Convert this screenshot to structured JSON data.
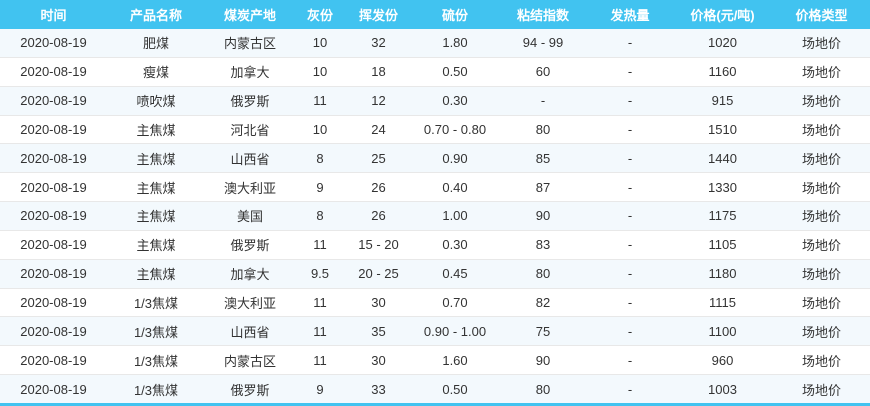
{
  "table": {
    "date_shown": "2020-08-19",
    "columns": [
      "时间",
      "产品名称",
      "煤炭产地",
      "灰份",
      "挥发份",
      "硫份",
      "粘结指数",
      "发热量",
      "价格(元/吨)",
      "价格类型"
    ],
    "rows": [
      [
        "2020-08-19",
        "肥煤",
        "内蒙古区",
        "10",
        "32",
        "1.80",
        "94 - 99",
        "-",
        "1020",
        "场地价"
      ],
      [
        "2020-08-19",
        "瘦煤",
        "加拿大",
        "10",
        "18",
        "0.50",
        "60",
        "-",
        "1160",
        "场地价"
      ],
      [
        "2020-08-19",
        "喷吹煤",
        "俄罗斯",
        "11",
        "12",
        "0.30",
        "-",
        "-",
        "915",
        "场地价"
      ],
      [
        "2020-08-19",
        "主焦煤",
        "河北省",
        "10",
        "24",
        "0.70 - 0.80",
        "80",
        "-",
        "1510",
        "场地价"
      ],
      [
        "2020-08-19",
        "主焦煤",
        "山西省",
        "8",
        "25",
        "0.90",
        "85",
        "-",
        "1440",
        "场地价"
      ],
      [
        "2020-08-19",
        "主焦煤",
        "澳大利亚",
        "9",
        "26",
        "0.40",
        "87",
        "-",
        "1330",
        "场地价"
      ],
      [
        "2020-08-19",
        "主焦煤",
        "美国",
        "8",
        "26",
        "1.00",
        "90",
        "-",
        "1175",
        "场地价"
      ],
      [
        "2020-08-19",
        "主焦煤",
        "俄罗斯",
        "11",
        "15 - 20",
        "0.30",
        "83",
        "-",
        "1105",
        "场地价"
      ],
      [
        "2020-08-19",
        "主焦煤",
        "加拿大",
        "9.5",
        "20 - 25",
        "0.45",
        "80",
        "-",
        "1180",
        "场地价"
      ],
      [
        "2020-08-19",
        "1/3焦煤",
        "澳大利亚",
        "11",
        "30",
        "0.70",
        "82",
        "-",
        "1115",
        "场地价"
      ],
      [
        "2020-08-19",
        "1/3焦煤",
        "山西省",
        "11",
        "35",
        "0.90 - 1.00",
        "75",
        "-",
        "1100",
        "场地价"
      ],
      [
        "2020-08-19",
        "1/3焦煤",
        "内蒙古区",
        "11",
        "30",
        "1.60",
        "90",
        "-",
        "960",
        "场地价"
      ],
      [
        "2020-08-19",
        "1/3焦煤",
        "俄罗斯",
        "9",
        "33",
        "0.50",
        "80",
        "-",
        "1003",
        "场地价"
      ]
    ],
    "colors": {
      "header_bg": "#41c3f0",
      "header_text": "#ffffff",
      "stripe_bg": "#f3f9fd",
      "row_bg": "#ffffff",
      "body_text": "#333333",
      "row_border": "#e8e8e8",
      "bottom_border": "#41c3f0"
    }
  }
}
